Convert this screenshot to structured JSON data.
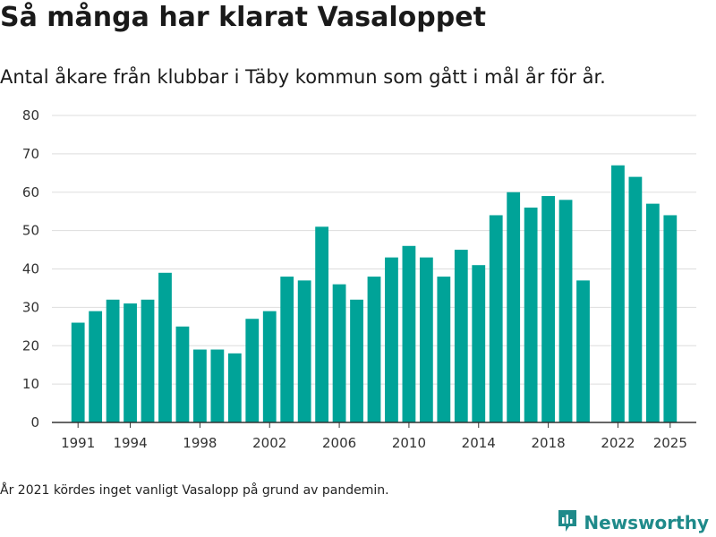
{
  "title": "Så många har klarat Vasaloppet",
  "subtitle": "Antal åkare från klubbar i Täby kommun som gått i mål år för år.",
  "footnote": "År 2021 kördes inget vanligt Vasalopp på grund av pandemin.",
  "brand": {
    "name": "Newsworthy",
    "icon": "newsworthy-logo-icon"
  },
  "colors": {
    "bar": "#00a398",
    "grid": "#dddddd",
    "axis": "#333333"
  },
  "chart_data": {
    "type": "bar",
    "title": "Så många har klarat Vasaloppet",
    "subtitle": "Antal åkare från klubbar i Täby kommun som gått i mål år för år.",
    "xlabel": "",
    "ylabel": "",
    "ylim": [
      0,
      80
    ],
    "yticks": [
      0,
      10,
      20,
      30,
      40,
      50,
      60,
      70,
      80
    ],
    "xticks": [
      1991,
      1994,
      1998,
      2002,
      2006,
      2010,
      2014,
      2018,
      2022,
      2025
    ],
    "xlim": [
      1989.5,
      2026.5
    ],
    "grid": true,
    "categories": [
      1991,
      1992,
      1993,
      1994,
      1995,
      1996,
      1997,
      1998,
      1999,
      2000,
      2001,
      2002,
      2003,
      2004,
      2005,
      2006,
      2007,
      2008,
      2009,
      2010,
      2011,
      2012,
      2013,
      2014,
      2015,
      2016,
      2017,
      2018,
      2019,
      2020,
      2022,
      2023,
      2024,
      2025
    ],
    "values": [
      26,
      29,
      32,
      31,
      32,
      39,
      25,
      19,
      19,
      18,
      27,
      29,
      38,
      37,
      51,
      36,
      32,
      38,
      43,
      46,
      43,
      38,
      45,
      41,
      54,
      60,
      56,
      59,
      58,
      37,
      67,
      64,
      57,
      54
    ]
  }
}
